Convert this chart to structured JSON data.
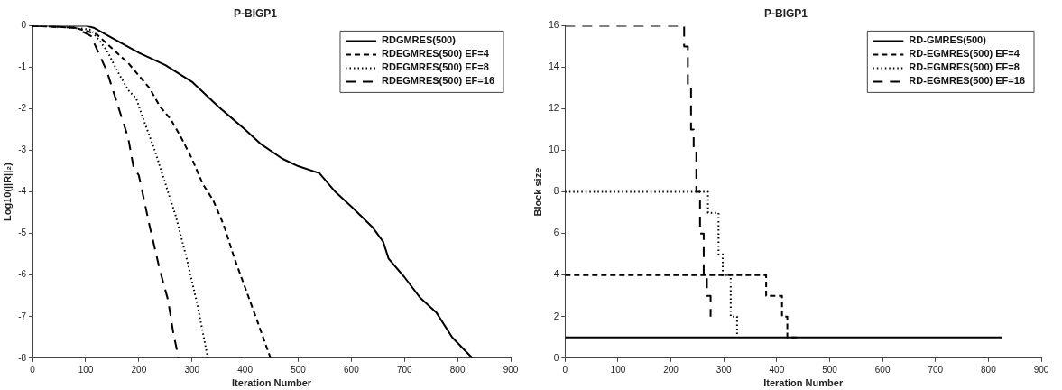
{
  "chart_data": [
    {
      "type": "line",
      "title": "P-BIGP1",
      "xlabel": "Iteration Number",
      "ylabel": "Log10(||R||₂)",
      "xlim": [
        0,
        900
      ],
      "xticks": [
        0,
        100,
        200,
        300,
        400,
        500,
        600,
        700,
        800,
        900
      ],
      "ylim": [
        -8,
        0
      ],
      "yticks": [
        -8,
        -7,
        -6,
        -5,
        -4,
        -3,
        -2,
        -1,
        0
      ],
      "grid": false,
      "legend": "top right",
      "marker": "none",
      "series": [
        {
          "name": "RDGMRES(500)",
          "color": "#000000",
          "line_style": "solid",
          "x": [
            0,
            100,
            115,
            150,
            200,
            250,
            300,
            350,
            400,
            430,
            470,
            500,
            540,
            570,
            600,
            640,
            660,
            670,
            700,
            730,
            760,
            790,
            828
          ],
          "values": [
            0,
            0,
            -0.05,
            -0.3,
            -0.65,
            -0.95,
            -1.35,
            -1.95,
            -2.5,
            -2.85,
            -3.2,
            -3.38,
            -3.55,
            -4,
            -4.35,
            -4.85,
            -5.2,
            -5.6,
            -6.05,
            -6.55,
            -6.9,
            -7.5,
            -8
          ]
        },
        {
          "name": "RDEGMRES(500) EF=4",
          "color": "#000000",
          "line_style": "dashed",
          "x": [
            0,
            80,
            120,
            150,
            180,
            200,
            220,
            240,
            260,
            280,
            300,
            320,
            340,
            360,
            380,
            400,
            420,
            448
          ],
          "values": [
            0,
            -0.05,
            -0.2,
            -0.55,
            -0.9,
            -1.2,
            -1.5,
            -1.95,
            -2.25,
            -2.7,
            -3.2,
            -3.8,
            -4.2,
            -4.8,
            -5.6,
            -6.3,
            -7,
            -8
          ]
        },
        {
          "name": "RDEGMRES(500) EF=8",
          "color": "#000000",
          "line_style": "dotted",
          "x": [
            0,
            80,
            110,
            140,
            160,
            180,
            195,
            210,
            230,
            250,
            270,
            290,
            310,
            330
          ],
          "values": [
            0,
            -0.05,
            -0.1,
            -0.6,
            -1.1,
            -1.55,
            -1.75,
            -2.3,
            -3,
            -3.8,
            -4.6,
            -5.6,
            -6.7,
            -8
          ]
        },
        {
          "name": "RDEGMRES(500) EF=16",
          "color": "#000000",
          "line_style": "dashed",
          "x": [
            0,
            80,
            110,
            140,
            160,
            180,
            190,
            200,
            220,
            240,
            255,
            265,
            275
          ],
          "values": [
            0,
            -0.05,
            -0.25,
            -1.1,
            -1.9,
            -2.7,
            -3.4,
            -3.6,
            -4.8,
            -5.9,
            -6.6,
            -7.4,
            -8
          ]
        }
      ]
    },
    {
      "type": "step",
      "title": "P-BIGP1",
      "xlabel": "Iteration Number",
      "ylabel": "Block size",
      "xlim": [
        0,
        900
      ],
      "xticks": [
        0,
        100,
        200,
        300,
        400,
        500,
        600,
        700,
        800,
        900
      ],
      "ylim": [
        0,
        16
      ],
      "yticks": [
        0,
        2,
        4,
        6,
        8,
        10,
        12,
        14,
        16
      ],
      "grid": false,
      "legend": "top right",
      "marker": "none",
      "series": [
        {
          "name": "RD-GMRES(500)",
          "color": "#000000",
          "line_style": "solid",
          "x": [
            0,
            825
          ],
          "values": [
            1,
            1
          ]
        },
        {
          "name": "RD-EGMRES(500) EF=4",
          "color": "#000000",
          "line_style": "dashed",
          "x": [
            0,
            380,
            410,
            420,
            445
          ],
          "values": [
            4,
            3,
            2,
            1,
            1
          ]
        },
        {
          "name": "RD-EGMRES(500) EF=8",
          "color": "#000000",
          "line_style": "dotted",
          "x": [
            0,
            270,
            290,
            298,
            313,
            325
          ],
          "values": [
            8,
            7,
            5,
            4,
            2,
            1
          ]
        },
        {
          "name": "RD-EGMRES(500) EF=16",
          "color": "#000000",
          "line_style": "dashed",
          "x": [
            0,
            225,
            232,
            238,
            243,
            248,
            255,
            262,
            268,
            275
          ],
          "values": [
            16,
            15,
            13,
            11,
            10,
            8,
            6,
            4,
            3,
            2
          ]
        }
      ]
    }
  ]
}
